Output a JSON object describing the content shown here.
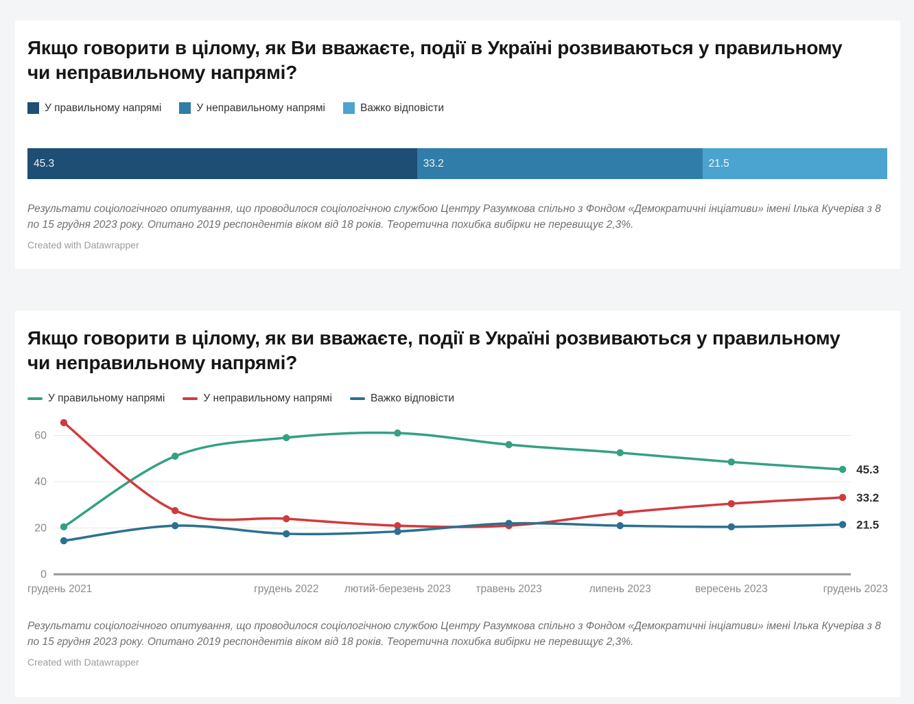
{
  "chart_data": [
    {
      "type": "bar",
      "subtype": "stacked-horizontal",
      "title": "Якщо говорити в цілому, як Ви вважаєте, події в Україні розвиваються у правильному чи неправильному напрямі?",
      "legend": [
        "У правильному напрямі",
        "У неправильному напрямі",
        "Важко відповісти"
      ],
      "colors": [
        "#1e4e74",
        "#2f7da8",
        "#4ba3cf"
      ],
      "categories": [
        "У правильному напрямі",
        "У неправильному напрямі",
        "Важко відповісти"
      ],
      "values": [
        45.3,
        33.2,
        21.5
      ],
      "value_labels": [
        "45.3",
        "33.2",
        "21.5"
      ],
      "xlim": [
        0,
        100
      ],
      "legend_position": "top",
      "footnote": "Результати соціологічного опитування, що проводилося соціологічною службою Центру Разумкова спільно з Фондом «Демократичні інціативи» імені Ілька Кучеріва з 8 по 15 грудня 2023 року. Опитано 2019 респондентів віком від 18 років. Теоретична похибка вибірки не перевищує 2,3%.",
      "byline": "Created with Datawrapper"
    },
    {
      "type": "line",
      "title": "Якщо говорити в цілому, як ви вважаєте, події в Україні розвиваються у правильному чи неправильному напрямі?",
      "legend": [
        "У правильному напрямі",
        "У неправильному напрямі",
        "Важко відповісти"
      ],
      "colors": [
        "#35a084",
        "#d13a3d",
        "#2c708f"
      ],
      "x_tick_labels": [
        "грудень 2021",
        "",
        "грудень 2022",
        "лютий-березень 2023",
        "травень 2023",
        "липень 2023",
        "вересень 2023",
        "грудень 2023"
      ],
      "series": [
        {
          "name": "У правильному напрямі",
          "color": "#35a084",
          "values": [
            20.5,
            51,
            59,
            61,
            56,
            52.5,
            48.5,
            45.3
          ]
        },
        {
          "name": "У неправильному напрямі",
          "color": "#d13a3d",
          "values": [
            65.5,
            27.5,
            24,
            21,
            21,
            26.5,
            30.5,
            33.2
          ]
        },
        {
          "name": "Важко відповісти",
          "color": "#2c708f",
          "values": [
            14.5,
            21,
            17.5,
            18.5,
            22,
            21,
            20.5,
            21.5
          ]
        }
      ],
      "end_labels": [
        "45.3",
        "33.2",
        "21.5"
      ],
      "yticks": [
        0,
        20,
        40,
        60
      ],
      "ylim": [
        0,
        68
      ],
      "grid": true,
      "legend_position": "top",
      "footnote": "Результати соціологічного опитування, що проводилося соціологічною службою Центру Разумкова спільно з Фондом «Демократичні інціативи» імені Ілька Кучеріва з 8 по 15 грудня 2023 року. Опитано 2019 респондентів віком від 18 років. Теоретична похибка вибірки не перевищує 2,3%.",
      "byline": "Created with Datawrapper"
    }
  ]
}
